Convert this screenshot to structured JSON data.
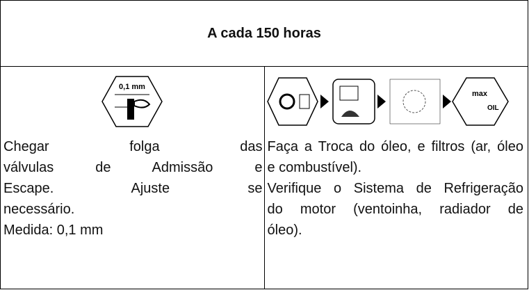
{
  "header": {
    "title": "A cada 150 horas"
  },
  "left_cell": {
    "icon_label": "0,1 mm",
    "lines": [
      "Chegar folga das",
      "válvulas de Admissão e",
      "Escape. Ajuste se",
      "necessário.",
      "Medida: 0,1 mm"
    ]
  },
  "right_cell": {
    "icon_labels": [
      "max",
      "OIL"
    ],
    "lines": [
      "Faça a Troca do óleo, e filtros (ar, óleo",
      "e combustível).",
      "Verifique o Sistema de Refrigeração",
      "do motor (ventoinha, radiador de",
      "óleo)."
    ]
  }
}
